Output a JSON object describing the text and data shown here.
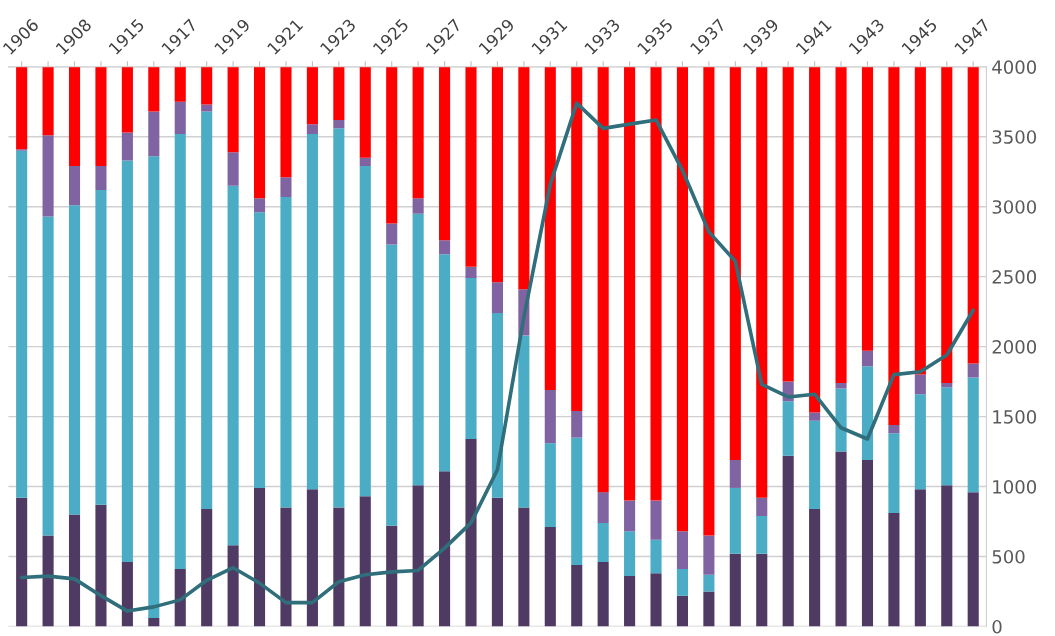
{
  "chart_data": {
    "type": "bar",
    "stacked": true,
    "categories": [
      "1906",
      null,
      "1908",
      null,
      "1915",
      null,
      "1917",
      null,
      "1919",
      null,
      "1921",
      null,
      "1923",
      null,
      "1925",
      null,
      "1927",
      null,
      "1929",
      null,
      "1931",
      null,
      "1933",
      null,
      "1935",
      null,
      "1937",
      null,
      "1939",
      null,
      "1941",
      null,
      "1943",
      null,
      "1945",
      null,
      "1947"
    ],
    "series": [
      {
        "color": "#4f3a64",
        "values": [
          920,
          650,
          800,
          870,
          460,
          60,
          410,
          840,
          580,
          990,
          850,
          980,
          850,
          930,
          720,
          1010,
          1110,
          1340,
          920,
          850,
          710,
          440,
          460,
          360,
          380,
          220,
          250,
          520,
          520,
          1220,
          840,
          1250,
          1190,
          810,
          980,
          1010,
          960
        ]
      },
      {
        "color": "#4bacc6",
        "values": [
          2480,
          2280,
          2210,
          2250,
          2870,
          3300,
          3110,
          2840,
          2570,
          1970,
          2220,
          2540,
          2710,
          2360,
          2010,
          1940,
          1550,
          1150,
          1320,
          1230,
          600,
          910,
          280,
          320,
          240,
          190,
          120,
          470,
          270,
          390,
          630,
          450,
          670,
          570,
          680,
          700,
          820
        ]
      },
      {
        "color": "#8064a2",
        "values": [
          10,
          580,
          280,
          170,
          200,
          320,
          230,
          50,
          240,
          100,
          140,
          70,
          60,
          60,
          150,
          110,
          100,
          80,
          220,
          330,
          380,
          190,
          220,
          220,
          280,
          270,
          280,
          200,
          130,
          140,
          60,
          40,
          110,
          60,
          140,
          30,
          100
        ]
      },
      {
        "color": "#ff0000",
        "values": [
          590,
          490,
          710,
          710,
          470,
          320,
          250,
          270,
          610,
          940,
          790,
          410,
          380,
          650,
          1120,
          940,
          1240,
          1430,
          1540,
          1590,
          2310,
          2460,
          3040,
          3100,
          3100,
          3320,
          3350,
          2810,
          3080,
          2250,
          2470,
          2260,
          2030,
          2560,
          2200,
          2260,
          2120
        ]
      },
      {
        "type": "line",
        "color": "#2f6e7a",
        "values": [
          350,
          360,
          340,
          220,
          110,
          140,
          190,
          330,
          420,
          310,
          170,
          170,
          320,
          370,
          390,
          400,
          560,
          740,
          1120,
          2210,
          3160,
          3740,
          3560,
          3590,
          3620,
          3260,
          2820,
          2610,
          1730,
          1640,
          1660,
          1420,
          1340,
          1800,
          1820,
          1940,
          2260
        ]
      }
    ],
    "ylim": [
      0,
      4000
    ],
    "yticks": [
      0,
      500,
      1000,
      1500,
      2000,
      2500,
      3000,
      3500,
      4000
    ],
    "grid": "y",
    "legend": false,
    "marker": "none",
    "line_style": "solid"
  }
}
